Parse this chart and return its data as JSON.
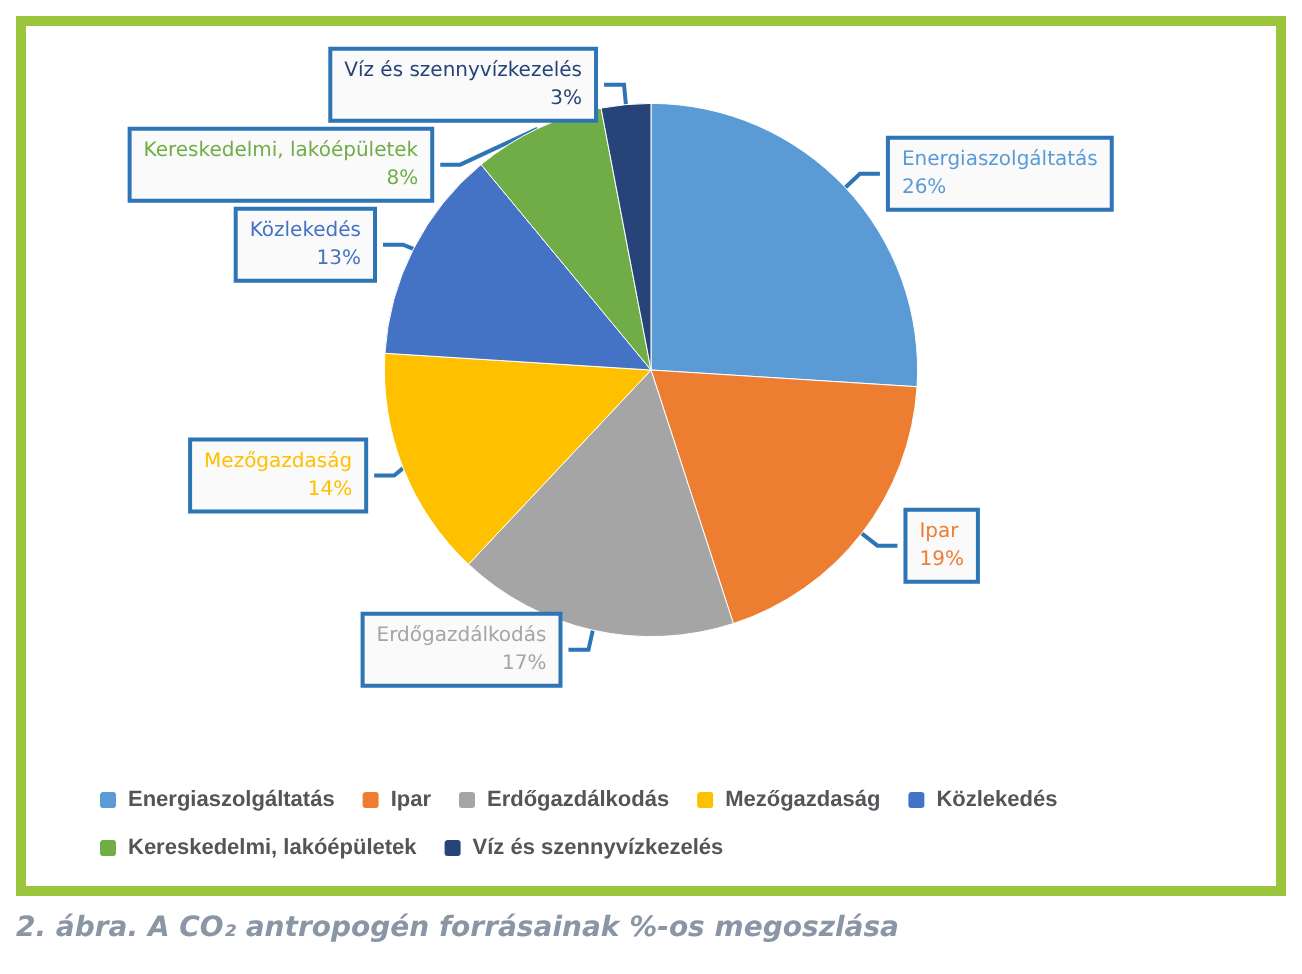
{
  "chart_data": {
    "type": "pie",
    "title": "2. ábra. A CO₂ antropogén forrásainak %-os megoszlása",
    "categories": [
      "Energiaszolgáltatás",
      "Ipar",
      "Erdőgazdálkodás",
      "Mezőgazdaság",
      "Közlekedés",
      "Kereskedelmi, lakóépületek",
      "Víz és szennyvízkezelés"
    ],
    "values": [
      26,
      19,
      17,
      14,
      13,
      8,
      3
    ],
    "colors": [
      "#5b9bd5",
      "#ed7d31",
      "#a5a5a5",
      "#ffc000",
      "#4472c4",
      "#70ad47",
      "#264478"
    ],
    "value_labels": [
      "26%",
      "19%",
      "17%",
      "14%",
      "13%",
      "8%",
      "3%"
    ],
    "legend": "bottom"
  }
}
